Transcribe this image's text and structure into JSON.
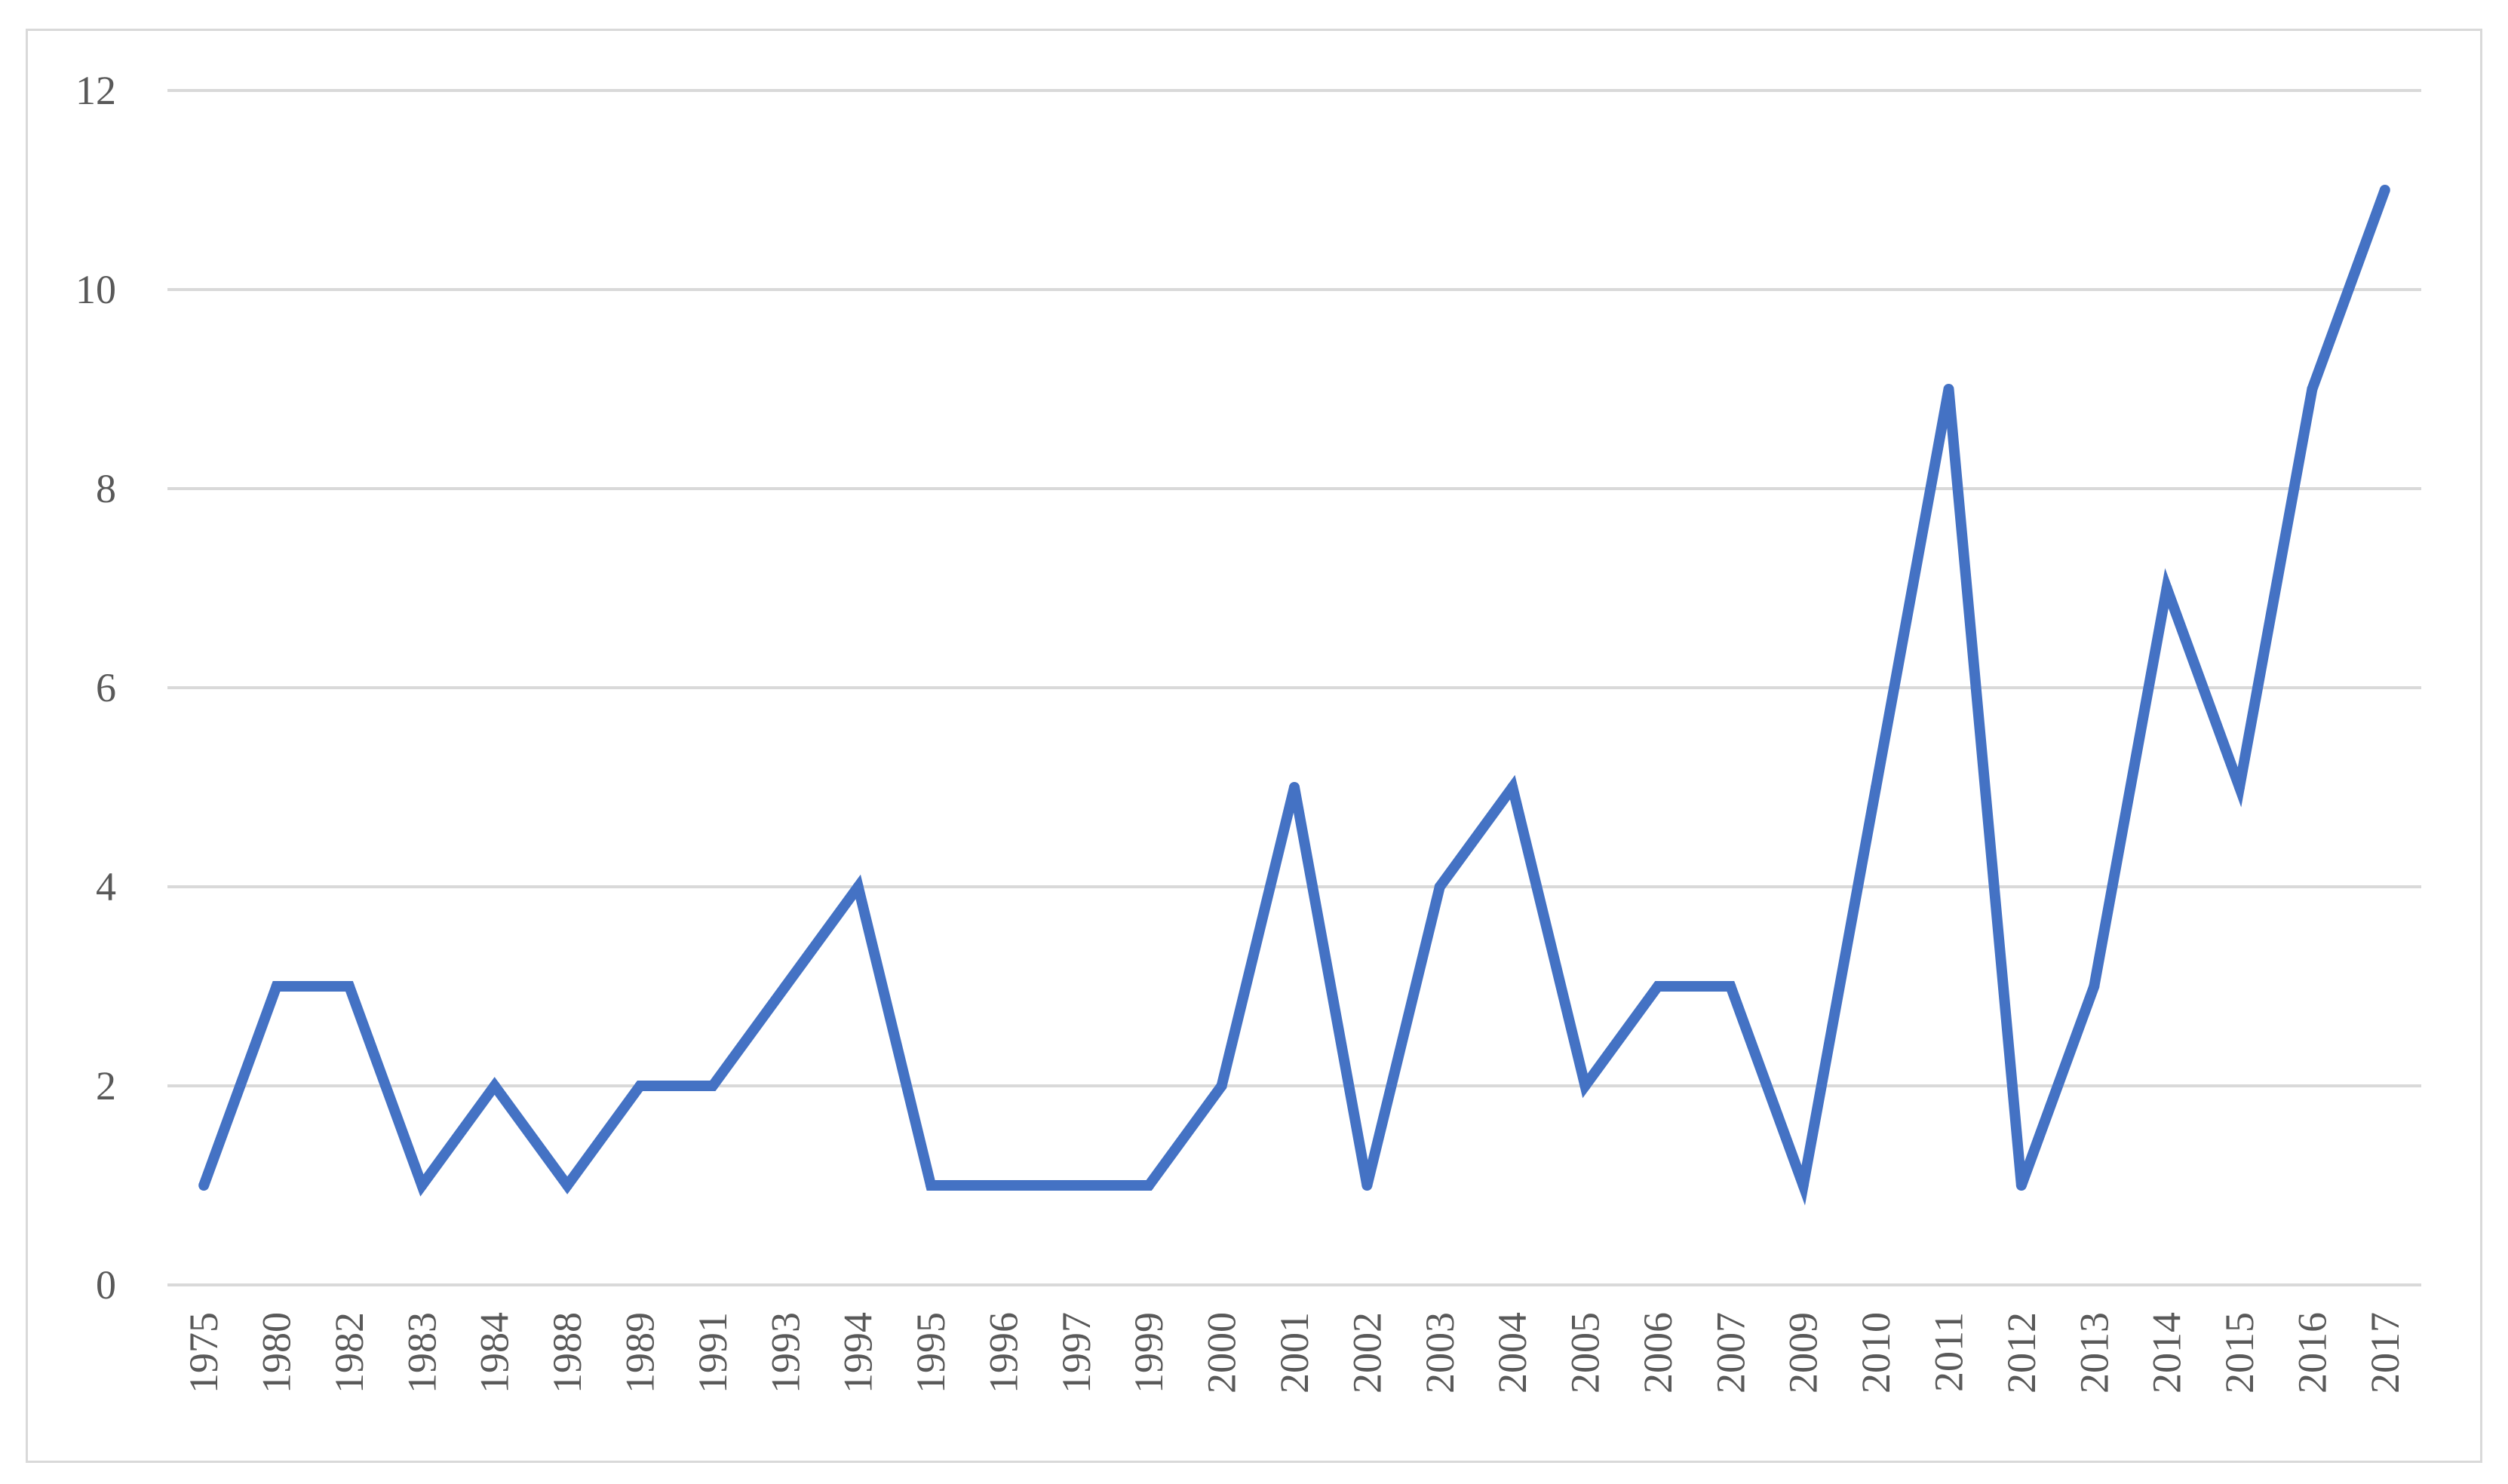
{
  "chart_data": {
    "type": "line",
    "title": "",
    "xlabel": "",
    "ylabel": "",
    "categories": [
      "1975",
      "1980",
      "1982",
      "1983",
      "1984",
      "1988",
      "1989",
      "1991",
      "1993",
      "1994",
      "1995",
      "1996",
      "1997",
      "1999",
      "2000",
      "2001",
      "2002",
      "2003",
      "2004",
      "2005",
      "2006",
      "2007",
      "2009",
      "2010",
      "2011",
      "2012",
      "2013",
      "2014",
      "2015",
      "2016",
      "2017"
    ],
    "series": [
      {
        "values": [
          1,
          3,
          3,
          1,
          2,
          1,
          2,
          2,
          3,
          4,
          1,
          1,
          1,
          1,
          2,
          5,
          1,
          4,
          5,
          2,
          3,
          3,
          1,
          5,
          9,
          1,
          3,
          7,
          5,
          9,
          11
        ],
        "color": "#4472c4"
      }
    ],
    "ylim": [
      0,
      12
    ],
    "yticks": [
      0,
      2,
      4,
      6,
      8,
      10,
      12
    ],
    "grid": true,
    "legend": "none"
  }
}
